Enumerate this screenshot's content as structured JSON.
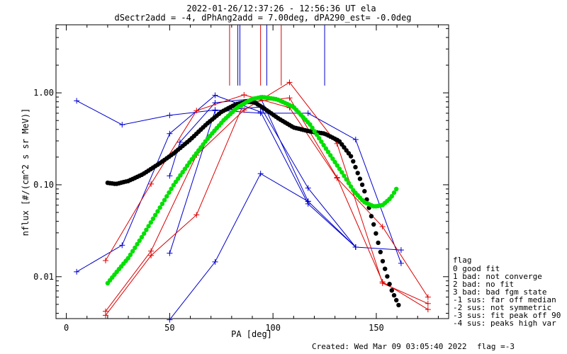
{
  "header": {
    "line1": "2022-01-26/12:37:26 - 12:56:36 UT ela",
    "line2": "dSectr2add = -4, dPhAng2add = 7.00deg, dPA290_est=  -0.0deg"
  },
  "footer": {
    "created": "Created: Wed Mar 09 03:05:40 2022",
    "flag": "flag =-3"
  },
  "legend": {
    "title": "flag",
    "items": [
      " 0 good fit",
      " 1 bad: not converge",
      " 2 bad: no fit",
      " 3 bad: bad fgm state",
      "-1 sus: far off median",
      "-2 sus: not symmetric",
      "-3 sus: fit peak off 90",
      "-4 sus: peaks high var"
    ]
  },
  "colors": {
    "blue": "#0000cc",
    "red": "#dd0000",
    "black": "#000000",
    "green": "#00e000"
  },
  "chart_data": {
    "type": "line",
    "xlabel": "PA [deg]",
    "ylabel": "nflux [#/(cm^2 s sr MeV)]",
    "xlim": [
      -5,
      185
    ],
    "ylim": [
      0.0035,
      5.5
    ],
    "yscale": "log",
    "xticks": [
      0,
      50,
      100,
      150
    ],
    "yticks": [
      {
        "value": 0.01,
        "label": "0.01"
      },
      {
        "value": 0.1,
        "label": "0.10"
      },
      {
        "value": 1.0,
        "label": "1.00"
      }
    ],
    "vlines": [
      {
        "x": 79,
        "ymin": 1.2,
        "color": "red"
      },
      {
        "x": 83,
        "ymin": 1.2,
        "color": "blue"
      },
      {
        "x": 84,
        "ymin": 1.2,
        "color": "blue"
      },
      {
        "x": 94,
        "ymin": 1.2,
        "color": "red"
      },
      {
        "x": 97,
        "ymin": 1.2,
        "color": "blue"
      },
      {
        "x": 104,
        "ymin": 1.2,
        "color": "red"
      },
      {
        "x": 125,
        "ymin": 1.2,
        "color": "blue"
      }
    ],
    "series": [
      {
        "color": "blue",
        "x": [
          5,
          27,
          50,
          72,
          94,
          117,
          140,
          162
        ],
        "y": [
          0.82,
          0.45,
          0.57,
          0.65,
          0.6,
          0.6,
          0.31,
          0.014
        ]
      },
      {
        "color": "blue",
        "x": [
          5,
          27,
          50,
          72,
          94,
          117,
          140,
          162
        ],
        "y": [
          0.0113,
          0.022,
          0.36,
          0.94,
          0.62,
          0.062,
          0.021,
          0.0195
        ]
      },
      {
        "color": "blue",
        "x": [
          50,
          55,
          72,
          94,
          117
        ],
        "y": [
          0.125,
          0.29,
          0.78,
          0.88,
          0.066
        ]
      },
      {
        "color": "blue",
        "x": [
          50,
          72,
          94,
          117,
          140
        ],
        "y": [
          0.018,
          0.64,
          0.7,
          0.092,
          0.021
        ]
      },
      {
        "color": "blue",
        "x": [
          50,
          72,
          94,
          117,
          140
        ],
        "y": [
          0.0034,
          0.0145,
          0.132,
          0.066,
          0.021
        ]
      },
      {
        "color": "red",
        "x": [
          19,
          41,
          63,
          86,
          108,
          131,
          153,
          175
        ],
        "y": [
          0.015,
          0.102,
          0.64,
          0.95,
          0.69,
          0.118,
          0.035,
          0.006
        ]
      },
      {
        "color": "red",
        "x": [
          19,
          41,
          63,
          86,
          108,
          131,
          153,
          175
        ],
        "y": [
          0.0042,
          0.019,
          0.21,
          0.65,
          1.3,
          0.28,
          0.0085,
          0.0051
        ]
      },
      {
        "color": "red",
        "x": [
          19,
          41,
          63,
          86,
          108,
          131,
          153,
          175
        ],
        "y": [
          0.0038,
          0.017,
          0.047,
          0.78,
          0.88,
          0.12,
          0.0088,
          0.0044
        ]
      }
    ],
    "fits": [
      {
        "color": "black",
        "x": [
          20,
          24,
          30,
          37,
          45,
          52,
          60,
          68,
          75,
          82,
          87,
          91,
          96,
          103,
          110,
          118,
          125,
          132,
          138,
          144,
          149,
          153,
          157,
          161
        ],
        "y": [
          0.105,
          0.102,
          0.11,
          0.13,
          0.17,
          0.22,
          0.31,
          0.46,
          0.62,
          0.75,
          0.8,
          0.79,
          0.67,
          0.52,
          0.42,
          0.38,
          0.36,
          0.3,
          0.2,
          0.09,
          0.035,
          0.015,
          0.0075,
          0.0048
        ]
      },
      {
        "color": "green",
        "x": [
          20,
          24,
          30,
          37,
          45,
          52,
          60,
          68,
          76,
          83,
          90,
          95,
          102,
          110,
          118,
          126,
          133,
          139,
          144,
          149,
          153,
          157,
          160
        ],
        "y": [
          0.0085,
          0.011,
          0.016,
          0.028,
          0.055,
          0.1,
          0.18,
          0.31,
          0.5,
          0.7,
          0.86,
          0.9,
          0.85,
          0.7,
          0.45,
          0.24,
          0.14,
          0.086,
          0.065,
          0.058,
          0.06,
          0.072,
          0.092
        ]
      }
    ]
  }
}
